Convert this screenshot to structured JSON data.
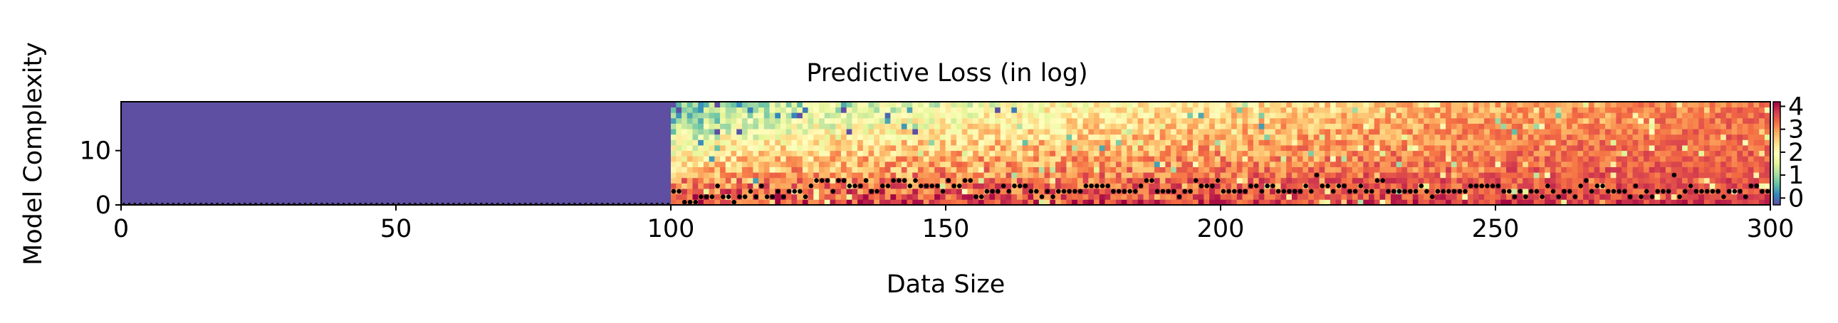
{
  "chart_data": {
    "type": "heatmap",
    "title": "Predictive Loss (in log)",
    "xlabel": "Data Size",
    "ylabel": "Model Complexity",
    "xlim": [
      0,
      300
    ],
    "ylim": [
      0,
      19
    ],
    "x_ticks": [
      "0",
      "50",
      "100",
      "150",
      "200",
      "250",
      "300"
    ],
    "y_ticks": [
      "0",
      "10"
    ],
    "colorbar": {
      "colormap": "Spectral_r",
      "range": [
        -0.3,
        4.2
      ],
      "ticks": [
        "0",
        "1",
        "2",
        "3",
        "4"
      ]
    },
    "uniform_region": {
      "x_range": [
        0,
        100
      ],
      "value": 4.2
    },
    "overlay": "black markers show the minimum-loss model complexity at each data size",
    "min_complexity_points": {
      "x": [
        100,
        105,
        110,
        115,
        120,
        125,
        130,
        135,
        140,
        145,
        150,
        155,
        160,
        165,
        170,
        175,
        180,
        185,
        190,
        195,
        200,
        205,
        210,
        215,
        220,
        225,
        230,
        235,
        240,
        245,
        250,
        255,
        260,
        265,
        270,
        275,
        280,
        285,
        290,
        295,
        300
      ],
      "y": [
        0,
        1,
        1,
        1,
        2,
        3,
        4,
        3,
        4,
        3,
        4,
        2,
        3,
        2,
        2,
        3,
        2,
        3,
        2,
        3,
        2,
        3,
        2,
        3,
        2,
        3,
        2,
        2,
        2,
        3,
        2,
        2,
        2,
        3,
        2,
        2,
        2,
        2,
        2,
        2,
        2
      ]
    }
  }
}
